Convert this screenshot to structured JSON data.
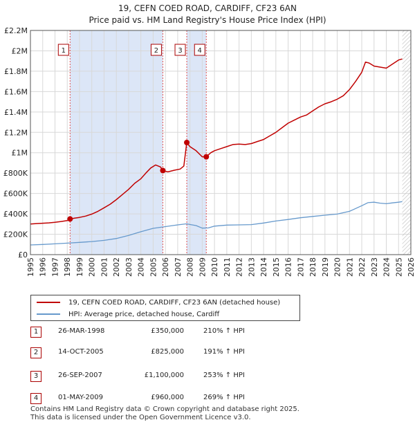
{
  "chart_data": {
    "type": "line",
    "title": "19, CEFN COED ROAD, CARDIFF, CF23 6AN",
    "subtitle": "Price paid vs. HM Land Registry's House Price Index (HPI)",
    "xlabel": "",
    "ylabel": "",
    "xlim": [
      1995,
      2026
    ],
    "ylim": [
      0,
      2200000
    ],
    "x_ticks": [
      1995,
      1996,
      1997,
      1998,
      1999,
      2000,
      2001,
      2002,
      2003,
      2004,
      2005,
      2006,
      2007,
      2008,
      2009,
      2010,
      2011,
      2012,
      2013,
      2014,
      2015,
      2016,
      2017,
      2018,
      2019,
      2020,
      2021,
      2022,
      2023,
      2024,
      2025,
      2026
    ],
    "y_ticks": [
      0,
      200000,
      400000,
      600000,
      800000,
      1000000,
      1200000,
      1400000,
      1600000,
      1800000,
      2000000,
      2200000
    ],
    "y_tick_labels": [
      "£0",
      "£200K",
      "£400K",
      "£600K",
      "£800K",
      "£1M",
      "£1.2M",
      "£1.4M",
      "£1.6M",
      "£1.8M",
      "£2M",
      "£2.2M"
    ],
    "grid": true,
    "colors": {
      "property": "#c00000",
      "hpi": "#6699cc",
      "shade": "#dce6f7",
      "sale_line": "#e05050"
    },
    "shaded_ranges": [
      [
        1998.23,
        2005.79
      ],
      [
        2007.74,
        2009.33
      ]
    ],
    "future_from": 2025.3,
    "series": [
      {
        "name": "19, CEFN COED ROAD, CARDIFF, CF23 6AN (detached house)",
        "color": "#c00000",
        "x": [
          1995.0,
          1995.5,
          1996.0,
          1996.5,
          1997.0,
          1997.5,
          1998.0,
          1998.23,
          1998.6,
          1999.0,
          1999.5,
          2000.0,
          2000.5,
          2001.0,
          2001.5,
          2002.0,
          2002.5,
          2003.0,
          2003.5,
          2004.0,
          2004.4,
          2004.8,
          2005.2,
          2005.6,
          2005.79,
          2006.2,
          2006.7,
          2007.2,
          2007.5,
          2007.74,
          2008.0,
          2008.5,
          2009.0,
          2009.33,
          2009.7,
          2010.0,
          2010.5,
          2011.0,
          2011.5,
          2012.0,
          2012.5,
          2013.0,
          2013.5,
          2014.0,
          2014.5,
          2015.0,
          2015.5,
          2016.0,
          2016.5,
          2017.0,
          2017.5,
          2018.0,
          2018.5,
          2019.0,
          2019.5,
          2020.0,
          2020.5,
          2021.0,
          2021.5,
          2022.0,
          2022.3,
          2022.6,
          2023.0,
          2023.5,
          2024.0,
          2024.5,
          2025.0,
          2025.3
        ],
        "values": [
          300000,
          305000,
          308000,
          312000,
          318000,
          325000,
          335000,
          350000,
          358000,
          365000,
          378000,
          398000,
          425000,
          460000,
          495000,
          540000,
          590000,
          640000,
          700000,
          745000,
          800000,
          850000,
          880000,
          860000,
          825000,
          812000,
          828000,
          840000,
          870000,
          1100000,
          1060000,
          1020000,
          960000,
          960000,
          1000000,
          1020000,
          1040000,
          1060000,
          1080000,
          1085000,
          1080000,
          1090000,
          1110000,
          1130000,
          1165000,
          1200000,
          1245000,
          1290000,
          1320000,
          1350000,
          1370000,
          1410000,
          1450000,
          1480000,
          1500000,
          1525000,
          1560000,
          1620000,
          1700000,
          1790000,
          1890000,
          1880000,
          1850000,
          1840000,
          1830000,
          1870000,
          1910000,
          1920000
        ]
      },
      {
        "name": "HPI: Average price, detached house, Cardiff",
        "color": "#6699cc",
        "x": [
          1995.0,
          1996.0,
          1997.0,
          1998.0,
          1999.0,
          2000.0,
          2001.0,
          2002.0,
          2003.0,
          2004.0,
          2005.0,
          2006.0,
          2007.0,
          2007.7,
          2008.5,
          2009.0,
          2009.5,
          2010.0,
          2011.0,
          2012.0,
          2013.0,
          2014.0,
          2015.0,
          2016.0,
          2017.0,
          2018.0,
          2019.0,
          2020.0,
          2021.0,
          2022.0,
          2022.5,
          2023.0,
          2023.5,
          2024.0,
          2024.5,
          2025.0,
          2025.3
        ],
        "values": [
          95000,
          100000,
          106000,
          113000,
          120000,
          128000,
          140000,
          158000,
          188000,
          225000,
          258000,
          275000,
          292000,
          302000,
          285000,
          260000,
          262000,
          280000,
          290000,
          292000,
          295000,
          310000,
          330000,
          345000,
          362000,
          375000,
          387000,
          398000,
          425000,
          480000,
          510000,
          515000,
          505000,
          500000,
          508000,
          515000,
          520000
        ]
      }
    ],
    "sales": [
      {
        "id": "1",
        "x": 1998.23,
        "value": 350000
      },
      {
        "id": "2",
        "x": 2005.79,
        "value": 825000
      },
      {
        "id": "3",
        "x": 2007.74,
        "value": 1100000
      },
      {
        "id": "4",
        "x": 2009.33,
        "value": 960000
      }
    ]
  },
  "legend": {
    "property_label": "19, CEFN COED ROAD, CARDIFF, CF23 6AN (detached house)",
    "hpi_label": "HPI: Average price, detached house, Cardiff"
  },
  "sales_table": [
    {
      "id": "1",
      "date": "26-MAR-1998",
      "price": "£350,000",
      "hpi": "210% ↑ HPI"
    },
    {
      "id": "2",
      "date": "14-OCT-2005",
      "price": "£825,000",
      "hpi": "191% ↑ HPI"
    },
    {
      "id": "3",
      "date": "26-SEP-2007",
      "price": "£1,100,000",
      "hpi": "253% ↑ HPI"
    },
    {
      "id": "4",
      "date": "01-MAY-2009",
      "price": "£960,000",
      "hpi": "269% ↑ HPI"
    }
  ],
  "footer": {
    "line1": "Contains HM Land Registry data © Crown copyright and database right 2025.",
    "line2": "This data is licensed under the Open Government Licence v3.0."
  }
}
